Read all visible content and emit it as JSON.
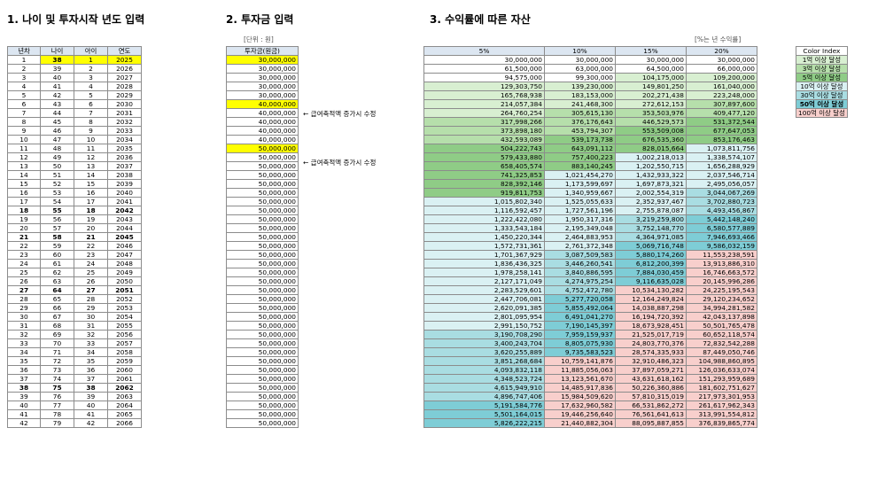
{
  "section1": {
    "title": "1. 나이 및 투자시작 년도 입력",
    "headers": [
      "년차",
      "나이",
      "아이",
      "연도"
    ]
  },
  "section2": {
    "title": "2. 투자금 입력",
    "unit_note": "[단위 : 원]",
    "header": "투자금(원금)",
    "note": "← 급여축적액 증가시 수정"
  },
  "section3": {
    "title": "3. 수익률에 따른 자산",
    "unit_note": "[%는 년 수익률]",
    "headers": [
      "5%",
      "10%",
      "15%",
      "20%"
    ]
  },
  "legend": {
    "title": "Color Index",
    "items": [
      {
        "label": "1억 이상 달성",
        "color": "#d8efd1"
      },
      {
        "label": "3억 이상 달성",
        "color": "#b6dfab"
      },
      {
        "label": "5억 이상 달성",
        "color": "#8fcc86"
      },
      {
        "label": "10억 이상 달성",
        "color": "#daf1f3"
      },
      {
        "label": "30억 이상 달성",
        "color": "#a9dde2"
      },
      {
        "label": "50억 이상 달성",
        "color": "#7ecdd6"
      },
      {
        "label": "100억 이상 달성",
        "color": "#f8cfcc"
      }
    ]
  },
  "rows": [
    {
      "n": "1",
      "age": "38",
      "kid": "1",
      "year": "2025",
      "inv": "30,000,000",
      "r5": "30,000,000",
      "r10": "30,000,000",
      "r15": "30,000,000",
      "r20": "30,000,000"
    },
    {
      "n": "2",
      "age": "39",
      "kid": "2",
      "year": "2026",
      "inv": "30,000,000",
      "r5": "61,500,000",
      "r10": "63,000,000",
      "r15": "64,500,000",
      "r20": "66,000,000"
    },
    {
      "n": "3",
      "age": "40",
      "kid": "3",
      "year": "2027",
      "inv": "30,000,000",
      "r5": "94,575,000",
      "r10": "99,300,000",
      "r15": "104,175,000",
      "r20": "109,200,000"
    },
    {
      "n": "4",
      "age": "41",
      "kid": "4",
      "year": "2028",
      "inv": "30,000,000",
      "r5": "129,303,750",
      "r10": "139,230,000",
      "r15": "149,801,250",
      "r20": "161,040,000"
    },
    {
      "n": "5",
      "age": "42",
      "kid": "5",
      "year": "2029",
      "inv": "30,000,000",
      "r5": "165,768,938",
      "r10": "183,153,000",
      "r15": "202,271,438",
      "r20": "223,248,000"
    },
    {
      "n": "6",
      "age": "43",
      "kid": "6",
      "year": "2030",
      "inv": "40,000,000",
      "r5": "214,057,384",
      "r10": "241,468,300",
      "r15": "272,612,153",
      "r20": "307,897,600"
    },
    {
      "n": "7",
      "age": "44",
      "kid": "7",
      "year": "2031",
      "inv": "40,000,000",
      "r5": "264,760,254",
      "r10": "305,615,130",
      "r15": "353,503,976",
      "r20": "409,477,120"
    },
    {
      "n": "8",
      "age": "45",
      "kid": "8",
      "year": "2032",
      "inv": "40,000,000",
      "r5": "317,998,266",
      "r10": "376,176,643",
      "r15": "446,529,573",
      "r20": "531,372,544"
    },
    {
      "n": "9",
      "age": "46",
      "kid": "9",
      "year": "2033",
      "inv": "40,000,000",
      "r5": "373,898,180",
      "r10": "453,794,307",
      "r15": "553,509,008",
      "r20": "677,647,053"
    },
    {
      "n": "10",
      "age": "47",
      "kid": "10",
      "year": "2034",
      "inv": "40,000,000",
      "r5": "432,593,089",
      "r10": "539,173,738",
      "r15": "676,535,360",
      "r20": "853,176,463"
    },
    {
      "n": "11",
      "age": "48",
      "kid": "11",
      "year": "2035",
      "inv": "50,000,000",
      "r5": "504,222,743",
      "r10": "643,091,112",
      "r15": "828,015,664",
      "r20": "1,073,811,756"
    },
    {
      "n": "12",
      "age": "49",
      "kid": "12",
      "year": "2036",
      "inv": "50,000,000",
      "r5": "579,433,880",
      "r10": "757,400,223",
      "r15": "1,002,218,013",
      "r20": "1,338,574,107"
    },
    {
      "n": "13",
      "age": "50",
      "kid": "13",
      "year": "2037",
      "inv": "50,000,000",
      "r5": "658,405,574",
      "r10": "883,140,245",
      "r15": "1,202,550,715",
      "r20": "1,656,288,929"
    },
    {
      "n": "14",
      "age": "51",
      "kid": "14",
      "year": "2038",
      "inv": "50,000,000",
      "r5": "741,325,853",
      "r10": "1,021,454,270",
      "r15": "1,432,933,322",
      "r20": "2,037,546,714"
    },
    {
      "n": "15",
      "age": "52",
      "kid": "15",
      "year": "2039",
      "inv": "50,000,000",
      "r5": "828,392,146",
      "r10": "1,173,599,697",
      "r15": "1,697,873,321",
      "r20": "2,495,056,057"
    },
    {
      "n": "16",
      "age": "53",
      "kid": "16",
      "year": "2040",
      "inv": "50,000,000",
      "r5": "919,811,753",
      "r10": "1,340,959,667",
      "r15": "2,002,554,319",
      "r20": "3,044,067,269"
    },
    {
      "n": "17",
      "age": "54",
      "kid": "17",
      "year": "2041",
      "inv": "50,000,000",
      "r5": "1,015,802,340",
      "r10": "1,525,055,633",
      "r15": "2,352,937,467",
      "r20": "3,702,880,723"
    },
    {
      "n": "18",
      "age": "55",
      "kid": "18",
      "year": "2042",
      "inv": "50,000,000",
      "r5": "1,116,592,457",
      "r10": "1,727,561,196",
      "r15": "2,755,878,087",
      "r20": "4,493,456,867"
    },
    {
      "n": "19",
      "age": "56",
      "kid": "19",
      "year": "2043",
      "inv": "50,000,000",
      "r5": "1,222,422,080",
      "r10": "1,950,317,316",
      "r15": "3,219,259,800",
      "r20": "5,442,148,240"
    },
    {
      "n": "20",
      "age": "57",
      "kid": "20",
      "year": "2044",
      "inv": "50,000,000",
      "r5": "1,333,543,184",
      "r10": "2,195,349,048",
      "r15": "3,752,148,770",
      "r20": "6,580,577,889"
    },
    {
      "n": "21",
      "age": "58",
      "kid": "21",
      "year": "2045",
      "inv": "50,000,000",
      "r5": "1,450,220,344",
      "r10": "2,464,883,953",
      "r15": "4,364,971,085",
      "r20": "7,946,693,466"
    },
    {
      "n": "22",
      "age": "59",
      "kid": "22",
      "year": "2046",
      "inv": "50,000,000",
      "r5": "1,572,731,361",
      "r10": "2,761,372,348",
      "r15": "5,069,716,748",
      "r20": "9,586,032,159"
    },
    {
      "n": "23",
      "age": "60",
      "kid": "23",
      "year": "2047",
      "inv": "50,000,000",
      "r5": "1,701,367,929",
      "r10": "3,087,509,583",
      "r15": "5,880,174,260",
      "r20": "11,553,238,591"
    },
    {
      "n": "24",
      "age": "61",
      "kid": "24",
      "year": "2048",
      "inv": "50,000,000",
      "r5": "1,836,436,325",
      "r10": "3,446,260,541",
      "r15": "6,812,200,399",
      "r20": "13,913,886,310"
    },
    {
      "n": "25",
      "age": "62",
      "kid": "25",
      "year": "2049",
      "inv": "50,000,000",
      "r5": "1,978,258,141",
      "r10": "3,840,886,595",
      "r15": "7,884,030,459",
      "r20": "16,746,663,572"
    },
    {
      "n": "26",
      "age": "63",
      "kid": "26",
      "year": "2050",
      "inv": "50,000,000",
      "r5": "2,127,171,049",
      "r10": "4,274,975,254",
      "r15": "9,116,635,028",
      "r20": "20,145,996,286"
    },
    {
      "n": "27",
      "age": "64",
      "kid": "27",
      "year": "2051",
      "inv": "50,000,000",
      "r5": "2,283,529,601",
      "r10": "4,752,472,780",
      "r15": "10,534,130,282",
      "r20": "24,225,195,543"
    },
    {
      "n": "28",
      "age": "65",
      "kid": "28",
      "year": "2052",
      "inv": "50,000,000",
      "r5": "2,447,706,081",
      "r10": "5,277,720,058",
      "r15": "12,164,249,824",
      "r20": "29,120,234,652"
    },
    {
      "n": "29",
      "age": "66",
      "kid": "29",
      "year": "2053",
      "inv": "50,000,000",
      "r5": "2,620,091,385",
      "r10": "5,855,492,064",
      "r15": "14,038,887,298",
      "r20": "34,994,281,582"
    },
    {
      "n": "30",
      "age": "67",
      "kid": "30",
      "year": "2054",
      "inv": "50,000,000",
      "r5": "2,801,095,954",
      "r10": "6,491,041,270",
      "r15": "16,194,720,392",
      "r20": "42,043,137,898"
    },
    {
      "n": "31",
      "age": "68",
      "kid": "31",
      "year": "2055",
      "inv": "50,000,000",
      "r5": "2,991,150,752",
      "r10": "7,190,145,397",
      "r15": "18,673,928,451",
      "r20": "50,501,765,478"
    },
    {
      "n": "32",
      "age": "69",
      "kid": "32",
      "year": "2056",
      "inv": "50,000,000",
      "r5": "3,190,708,290",
      "r10": "7,959,159,937",
      "r15": "21,525,017,719",
      "r20": "60,652,118,574"
    },
    {
      "n": "33",
      "age": "70",
      "kid": "33",
      "year": "2057",
      "inv": "50,000,000",
      "r5": "3,400,243,704",
      "r10": "8,805,075,930",
      "r15": "24,803,770,376",
      "r20": "72,832,542,288"
    },
    {
      "n": "34",
      "age": "71",
      "kid": "34",
      "year": "2058",
      "inv": "50,000,000",
      "r5": "3,620,255,889",
      "r10": "9,735,583,523",
      "r15": "28,574,335,933",
      "r20": "87,449,050,746"
    },
    {
      "n": "35",
      "age": "72",
      "kid": "35",
      "year": "2059",
      "inv": "50,000,000",
      "r5": "3,851,268,684",
      "r10": "10,759,141,876",
      "r15": "32,910,486,323",
      "r20": "104,988,860,895"
    },
    {
      "n": "36",
      "age": "73",
      "kid": "36",
      "year": "2060",
      "inv": "50,000,000",
      "r5": "4,093,832,118",
      "r10": "11,885,056,063",
      "r15": "37,897,059,271",
      "r20": "126,036,633,074"
    },
    {
      "n": "37",
      "age": "74",
      "kid": "37",
      "year": "2061",
      "inv": "50,000,000",
      "r5": "4,348,523,724",
      "r10": "13,123,561,670",
      "r15": "43,631,618,162",
      "r20": "151,293,959,689"
    },
    {
      "n": "38",
      "age": "75",
      "kid": "38",
      "year": "2062",
      "inv": "50,000,000",
      "r5": "4,615,949,910",
      "r10": "14,485,917,836",
      "r15": "50,226,360,886",
      "r20": "181,602,751,627"
    },
    {
      "n": "39",
      "age": "76",
      "kid": "39",
      "year": "2063",
      "inv": "50,000,000",
      "r5": "4,896,747,406",
      "r10": "15,984,509,620",
      "r15": "57,810,315,019",
      "r20": "217,973,301,953"
    },
    {
      "n": "40",
      "age": "77",
      "kid": "40",
      "year": "2064",
      "inv": "50,000,000",
      "r5": "5,191,584,776",
      "r10": "17,632,960,582",
      "r15": "66,531,862,272",
      "r20": "261,617,962,343"
    },
    {
      "n": "41",
      "age": "78",
      "kid": "41",
      "year": "2065",
      "inv": "50,000,000",
      "r5": "5,501,164,015",
      "r10": "19,446,256,640",
      "r15": "76,561,641,613",
      "r20": "313,991,554,812"
    },
    {
      "n": "42",
      "age": "79",
      "kid": "42",
      "year": "2066",
      "inv": "50,000,000",
      "r5": "5,826,222,215",
      "r10": "21,440,882,304",
      "r15": "88,095,887,855",
      "r20": "376,839,865,774"
    }
  ]
}
